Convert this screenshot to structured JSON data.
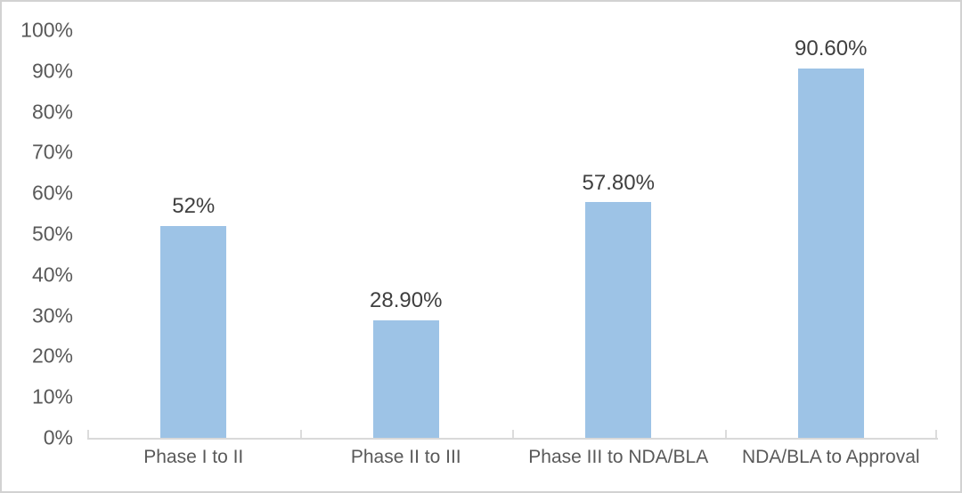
{
  "chart_data": {
    "type": "bar",
    "title": "",
    "xlabel": "",
    "ylabel": "",
    "categories": [
      "Phase I to II",
      "Phase II to III",
      "Phase III to NDA/BLA",
      "NDA/BLA to Approval"
    ],
    "values": [
      52,
      28.9,
      57.8,
      90.6
    ],
    "data_labels": [
      "52%",
      "28.90%",
      "57.80%",
      "90.60%"
    ],
    "y_ticks": [
      "0%",
      "10%",
      "20%",
      "30%",
      "40%",
      "50%",
      "60%",
      "70%",
      "80%",
      "90%",
      "100%"
    ],
    "ylim": [
      0,
      100
    ],
    "grid": false,
    "legend": "none"
  },
  "colors": {
    "bar": "#9DC3E6",
    "axis_line": "#D9D9D9",
    "tick": "#DCDCDC",
    "y_label": "#595959",
    "x_label": "#595959",
    "data_label": "#3F3F3F",
    "canvas_border": "#D2D2D2",
    "background": "#FFFFFF"
  }
}
